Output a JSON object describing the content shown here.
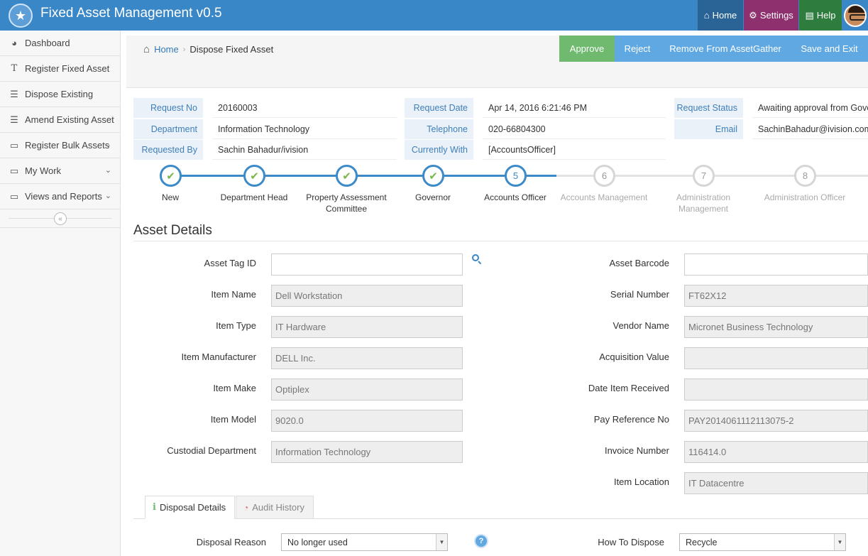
{
  "app": {
    "title": "Fixed Asset Management v0.5"
  },
  "topnav": {
    "home": "Home",
    "settings": "Settings",
    "help": "Help"
  },
  "sidebar": {
    "items": [
      {
        "label": "Dashboard",
        "icon": "dashboard-icon"
      },
      {
        "label": "Register Fixed Asset",
        "icon": "text-icon"
      },
      {
        "label": "Dispose Existing",
        "icon": "list-icon"
      },
      {
        "label": "Amend Existing Asset",
        "icon": "list-icon"
      },
      {
        "label": "Register Bulk Assets",
        "icon": "monitor-icon"
      },
      {
        "label": "My Work",
        "icon": "monitor-icon"
      },
      {
        "label": "Views and Reports",
        "icon": "monitor-icon"
      }
    ]
  },
  "breadcrumb": {
    "home": "Home",
    "current": "Dispose Fixed Asset"
  },
  "actions": {
    "approve": "Approve",
    "reject": "Reject",
    "remove": "Remove From AssetGather",
    "save_exit": "Save and Exit"
  },
  "request": {
    "request_no_label": "Request No",
    "request_no": "20160003",
    "department_label": "Department",
    "department": "Information Technology",
    "requested_by_label": "Requested By",
    "requested_by": "Sachin Bahadur/ivision",
    "request_date_label": "Request Date",
    "request_date": "Apr 14, 2016 6:21:46 PM",
    "telephone_label": "Telephone",
    "telephone": "020-66804300",
    "currently_with_label": "Currently With",
    "currently_with": "[AccountsOfficer]",
    "status_label": "Request Status",
    "status": "Awaiting approval from Gove",
    "email_label": "Email",
    "email": "SachinBahadur@ivision.com"
  },
  "steps": [
    {
      "num": "✔",
      "label": "New",
      "state": "done"
    },
    {
      "num": "✔",
      "label": "Department Head",
      "state": "done"
    },
    {
      "num": "✔",
      "label": "Property Assessment Committee",
      "state": "done"
    },
    {
      "num": "✔",
      "label": "Governor",
      "state": "done"
    },
    {
      "num": "5",
      "label": "Accounts Officer",
      "state": "active"
    },
    {
      "num": "6",
      "label": "Accounts Management",
      "state": "pending"
    },
    {
      "num": "7",
      "label": "Administration Management",
      "state": "pending"
    },
    {
      "num": "8",
      "label": "Administration Officer",
      "state": "pending"
    }
  ],
  "asset": {
    "title": "Asset Details",
    "left": [
      {
        "label": "Asset Tag ID",
        "value": "",
        "editable": true
      },
      {
        "label": "Item Name",
        "value": "Dell Workstation"
      },
      {
        "label": "Item Type",
        "value": "IT Hardware"
      },
      {
        "label": "Item Manufacturer",
        "value": "DELL Inc."
      },
      {
        "label": "Item Make",
        "value": "Optiplex"
      },
      {
        "label": "Item Model",
        "value": "9020.0"
      },
      {
        "label": "Custodial Department",
        "value": "Information Technology"
      }
    ],
    "right": [
      {
        "label": "Asset Barcode",
        "value": "",
        "editable": true
      },
      {
        "label": "Serial Number",
        "value": "FT62X12"
      },
      {
        "label": "Vendor Name",
        "value": "Micronet Business Technology"
      },
      {
        "label": "Acquisition Value",
        "value": ""
      },
      {
        "label": "Date Item Received",
        "value": ""
      },
      {
        "label": "Pay Reference No",
        "value": "PAY2014061112113075-2"
      },
      {
        "label": "Invoice Number",
        "value": "116414.0"
      },
      {
        "label": "Item Location",
        "value": "IT Datacentre"
      }
    ]
  },
  "tabs": {
    "disposal": "Disposal Details",
    "audit": "Audit History"
  },
  "disposal": {
    "reason_label": "Disposal Reason",
    "reason": "No longer used",
    "how_label": "How To Dispose",
    "how": "Recycle"
  }
}
